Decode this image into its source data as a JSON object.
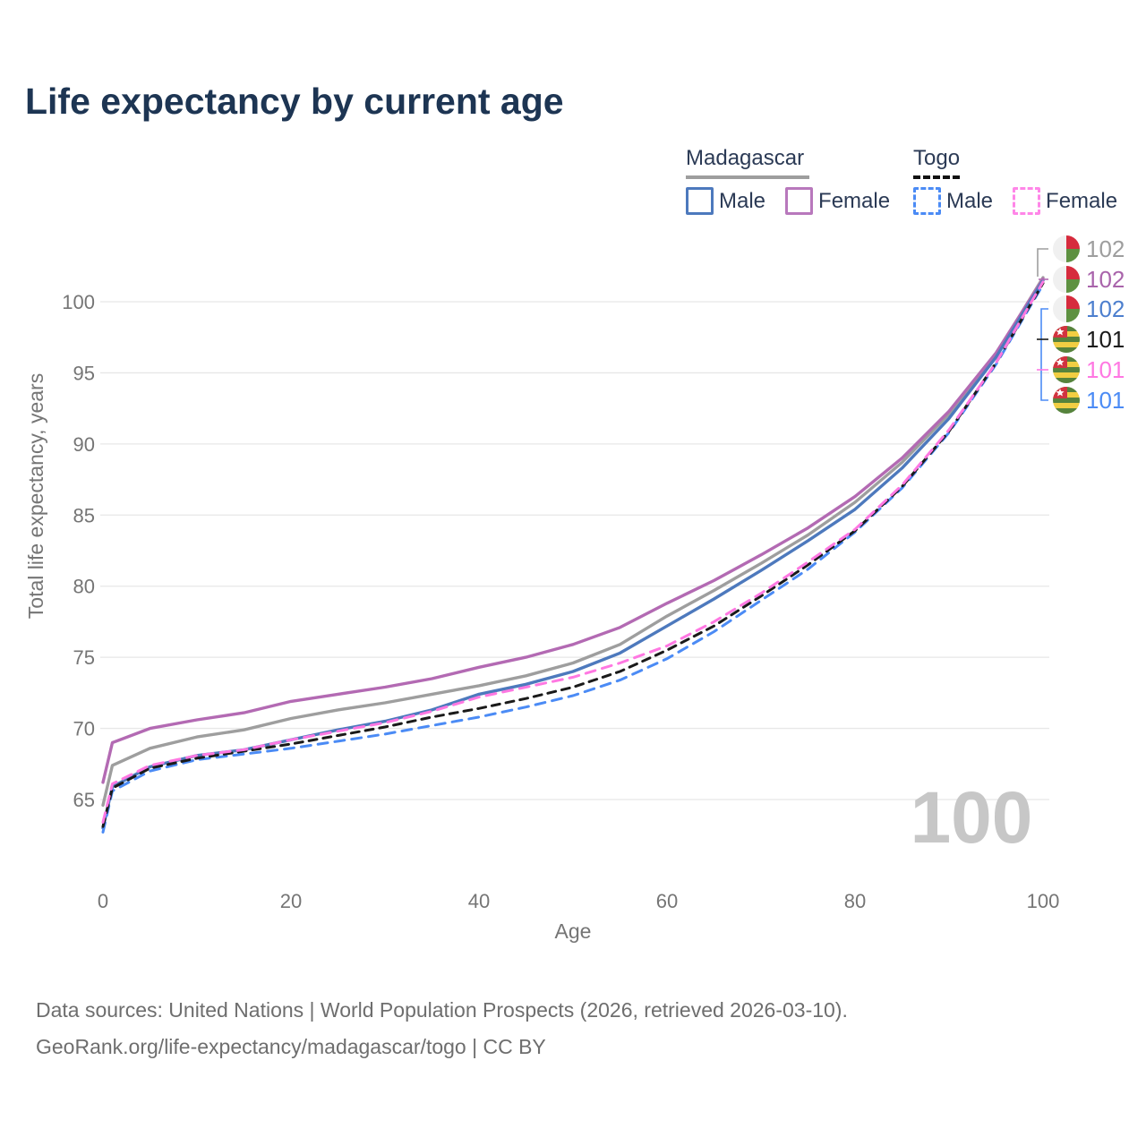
{
  "title": "Life expectancy by current age",
  "legend": {
    "groups": [
      {
        "name": "Madagascar",
        "underline_color": "#9e9e9e",
        "underline_style": "solid",
        "items": [
          {
            "label": "Male",
            "color": "#4d79bd",
            "style": "solid"
          },
          {
            "label": "Female",
            "color": "#b878bc",
            "style": "solid"
          }
        ]
      },
      {
        "name": "Togo",
        "underline_color": "#111111",
        "underline_style": "dashed",
        "items": [
          {
            "label": "Male",
            "color": "#4b8bf5",
            "style": "dashed"
          },
          {
            "label": "Female",
            "color": "#ff86e8",
            "style": "dashed"
          }
        ]
      }
    ]
  },
  "chart_data": {
    "type": "line",
    "title": "Life expectancy by current age",
    "xlabel": "Age",
    "ylabel": "Total life expectancy, years",
    "xlim": [
      0,
      100
    ],
    "ylim": [
      62,
      103
    ],
    "xticks": [
      0,
      20,
      40,
      60,
      80,
      100
    ],
    "yticks": [
      65,
      70,
      75,
      80,
      85,
      90,
      95,
      100
    ],
    "grid": true,
    "legend_position": "top-right",
    "watermark": "100",
    "x": [
      0,
      1,
      5,
      10,
      15,
      20,
      25,
      30,
      35,
      40,
      45,
      50,
      55,
      60,
      65,
      70,
      75,
      80,
      85,
      90,
      95,
      100
    ],
    "series": [
      {
        "name": "Madagascar Total",
        "country": "madagascar",
        "color": "#9e9e9e",
        "dash": "solid",
        "end_label": "102",
        "label_color": "#9e9e9e",
        "values": [
          64.6,
          67.4,
          68.6,
          69.4,
          69.9,
          70.7,
          71.3,
          71.8,
          72.4,
          73.0,
          73.7,
          74.6,
          75.9,
          77.9,
          79.7,
          81.6,
          83.6,
          85.9,
          88.7,
          92.1,
          96.3,
          101.7
        ]
      },
      {
        "name": "Madagascar Female",
        "country": "madagascar",
        "color": "#b36ab3",
        "dash": "solid",
        "end_label": "102",
        "label_color": "#a964ab",
        "values": [
          66.2,
          69.0,
          70.0,
          70.6,
          71.1,
          71.9,
          72.4,
          72.9,
          73.5,
          74.3,
          75.0,
          75.9,
          77.1,
          78.8,
          80.4,
          82.2,
          84.1,
          86.3,
          89.0,
          92.3,
          96.4,
          101.6
        ]
      },
      {
        "name": "Madagascar Male",
        "country": "madagascar",
        "color": "#4d79bd",
        "dash": "solid",
        "end_label": "102",
        "label_color": "#4d7fce",
        "values": [
          63.0,
          65.9,
          67.3,
          68.1,
          68.5,
          69.2,
          69.9,
          70.5,
          71.3,
          72.4,
          73.1,
          74.0,
          75.3,
          77.2,
          79.1,
          81.1,
          83.2,
          85.4,
          88.3,
          91.8,
          96.1,
          101.5
        ]
      },
      {
        "name": "Togo Total",
        "country": "togo",
        "color": "#1a1a1a",
        "dash": "dashed",
        "end_label": "101",
        "label_color": "#1a1a1a",
        "values": [
          63.1,
          65.8,
          67.2,
          67.9,
          68.4,
          68.9,
          69.5,
          70.1,
          70.8,
          71.4,
          72.1,
          72.9,
          74.0,
          75.5,
          77.2,
          79.3,
          81.5,
          83.9,
          87.0,
          90.9,
          95.7,
          101.3
        ]
      },
      {
        "name": "Togo Female",
        "country": "togo",
        "color": "#ff78e2",
        "dash": "dashed",
        "end_label": "101",
        "label_color": "#ff78e2",
        "values": [
          63.4,
          66.1,
          67.4,
          68.1,
          68.5,
          69.2,
          69.8,
          70.4,
          71.2,
          72.2,
          72.9,
          73.6,
          74.6,
          75.8,
          77.5,
          79.5,
          81.7,
          84.0,
          87.1,
          91.0,
          95.7,
          101.4
        ]
      },
      {
        "name": "Togo Male",
        "country": "togo",
        "color": "#4b8bf5",
        "dash": "dashed",
        "end_label": "101",
        "label_color": "#4b8bf5",
        "values": [
          62.7,
          65.6,
          67.0,
          67.8,
          68.2,
          68.6,
          69.1,
          69.6,
          70.2,
          70.8,
          71.5,
          72.3,
          73.4,
          74.9,
          76.8,
          79.0,
          81.2,
          83.8,
          86.9,
          90.8,
          95.6,
          101.2
        ]
      }
    ],
    "flag_colors": {
      "madagascar": {
        "white": "#f0f0f0",
        "red": "#d62b3d",
        "green": "#5e9141"
      },
      "togo": {
        "green": "#56833c",
        "yellow": "#f1ce43",
        "red": "#d13340",
        "star": "#ffffff"
      }
    },
    "axis_text_color": "#757575",
    "grid_color": "#e7e7e7",
    "watermark_color": "#c7c7c7"
  },
  "footer": {
    "line1": "Data sources: United Nations | World Population Prospects (2026, retrieved 2026-03-10).",
    "line2": "GeoRank.org/life-expectancy/madagascar/togo | CC BY"
  }
}
